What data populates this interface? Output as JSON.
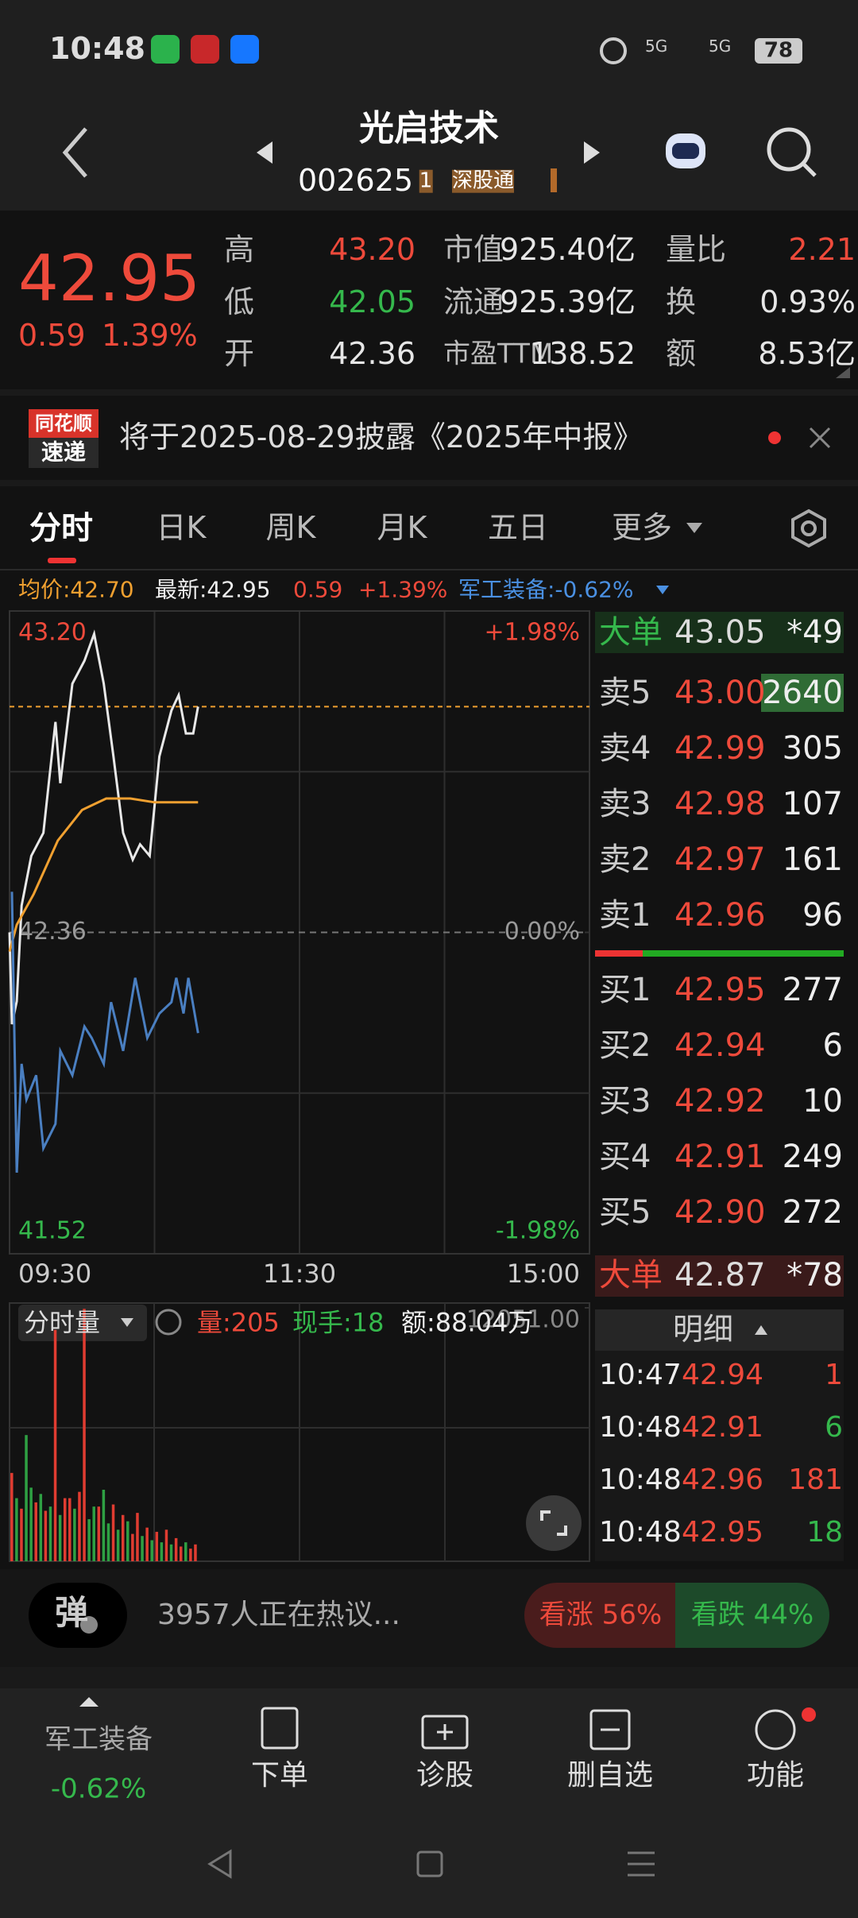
{
  "status_bar": {
    "time": "10:48",
    "signal1": "5G",
    "signal2": "5G",
    "battery": "78"
  },
  "header": {
    "name": "光启技术",
    "code": "002625",
    "badge1": "1",
    "badge2": "深股通"
  },
  "quote": {
    "price": "42.95",
    "change": "0.59",
    "change_pct": "1.39%",
    "rows": [
      [
        "高",
        "43.20",
        "市值",
        "925.40亿",
        "量比",
        "2.21"
      ],
      [
        "低",
        "42.05",
        "流通",
        "925.39亿",
        "换",
        "0.93%"
      ],
      [
        "开",
        "42.36",
        "市盈TTM",
        "138.52",
        "额",
        "8.53亿"
      ]
    ]
  },
  "notice": {
    "brand1": "同花顺",
    "brand2": "速递",
    "text": "将于2025-08-29披露《2025年中报》"
  },
  "tabs": [
    "分时",
    "日K",
    "周K",
    "月K",
    "五日",
    "更多"
  ],
  "info_line": {
    "avg": "均价:42.70",
    "latest": "最新:42.95",
    "change": "0.59",
    "change_pct": "+1.39%",
    "sector": "军工装备:-0.62%"
  },
  "chart_data": [
    {
      "type": "line",
      "xlim": [
        "09:30",
        "15:00"
      ],
      "xticks": [
        "09:30",
        "11:30",
        "15:00"
      ],
      "xgrid": [
        "10:30",
        "11:30",
        "14:00"
      ],
      "ylim": [
        41.52,
        43.2
      ],
      "yticks": [
        {
          "value": 43.2,
          "label": "43.20"
        },
        42.36,
        41.52
      ],
      "ygrid": [
        42.78,
        41.94
      ],
      "y2lim": [
        -1.98,
        1.98
      ],
      "y2ticks": [
        {
          "value": 1.98,
          "label": "+1.98%"
        },
        {
          "value": 0,
          "label": "0.00%"
        },
        {
          "value": -1.98,
          "label": "-1.98%"
        }
      ],
      "price_line": 42.95,
      "price_line_color": "#f0a030",
      "series": [
        {
          "color": "#e8e8e8",
          "x": [
            "09:30",
            "09:31",
            "09:33",
            "09:35",
            "09:39",
            "09:44",
            "09:49",
            "09:51",
            "09:56",
            "10:01",
            "10:05",
            "10:09",
            "10:13",
            "10:17",
            "10:21",
            "10:24",
            "10:28",
            "10:32",
            "10:37",
            "10:40",
            "10:43",
            "10:46",
            "10:48"
          ],
          "values": [
            42.36,
            42.12,
            42.18,
            42.43,
            42.56,
            42.62,
            42.91,
            42.75,
            43.01,
            43.07,
            43.14,
            43.01,
            42.82,
            42.62,
            42.55,
            42.59,
            42.56,
            42.82,
            42.94,
            42.98,
            42.88,
            42.88,
            42.95
          ]
        },
        {
          "color": "#f0a030",
          "x": [
            "09:30",
            "09:33",
            "09:40",
            "09:50",
            "10:00",
            "10:10",
            "10:20",
            "10:30",
            "10:40",
            "10:48"
          ],
          "values": [
            42.31,
            42.38,
            42.46,
            42.6,
            42.68,
            42.71,
            42.71,
            42.7,
            42.7,
            42.7
          ]
        },
        {
          "color": "#4a7fc1",
          "axis": "y2",
          "x": [
            "09:31",
            "09:33",
            "09:35",
            "09:37",
            "09:41",
            "09:44",
            "09:49",
            "09:51",
            "09:56",
            "10:01",
            "10:04",
            "10:09",
            "10:12",
            "10:17",
            "10:22",
            "10:27",
            "10:32",
            "10:37",
            "10:39",
            "10:42",
            "10:44",
            "10:48"
          ],
          "values": [
            0.25,
            -1.48,
            -0.81,
            -1.03,
            -0.88,
            -1.33,
            -1.18,
            -0.73,
            -0.88,
            -0.58,
            -0.65,
            -0.81,
            -0.43,
            -0.73,
            -0.28,
            -0.65,
            -0.5,
            -0.43,
            -0.28,
            -0.5,
            -0.28,
            -0.62
          ]
        }
      ]
    },
    {
      "type": "bar",
      "xlim": [
        "09:30",
        "15:00"
      ],
      "ylim": [
        0,
        12051
      ],
      "yticks": [
        {
          "value": 12051,
          "label": "12051.00"
        }
      ],
      "x": [
        "09:31",
        "09:33",
        "09:35",
        "09:37",
        "09:39",
        "09:41",
        "09:43",
        "09:45",
        "09:47",
        "09:49",
        "09:51",
        "09:53",
        "09:55",
        "09:57",
        "09:59",
        "10:01",
        "10:03",
        "10:05",
        "10:07",
        "10:09",
        "10:11",
        "10:13",
        "10:15",
        "10:17",
        "10:19",
        "10:21",
        "10:23",
        "10:25",
        "10:27",
        "10:29",
        "10:31",
        "10:33",
        "10:35",
        "10:37",
        "10:39",
        "10:41",
        "10:43",
        "10:45",
        "10:47"
      ],
      "values": [
        4200,
        3000,
        2500,
        6000,
        3500,
        2800,
        3200,
        2400,
        2600,
        11000,
        2200,
        3000,
        3000,
        2500,
        3300,
        12000,
        2000,
        2600,
        2600,
        3400,
        1800,
        2700,
        1500,
        2200,
        1900,
        1300,
        2300,
        1200,
        1600,
        1000,
        1400,
        900,
        1500,
        800,
        1100,
        700,
        900,
        600,
        800
      ],
      "colors": [
        "#e03c31",
        "#2ea043",
        "#e03c31",
        "#2ea043",
        "#2ea043",
        "#e03c31",
        "#2ea043",
        "#e03c31",
        "#2ea043",
        "#e03c31",
        "#2ea043",
        "#e03c31",
        "#e03c31",
        "#2ea043",
        "#e03c31",
        "#e03c31",
        "#2ea043",
        "#2ea043",
        "#e03c31",
        "#2ea043",
        "#2ea043",
        "#e03c31",
        "#2ea043",
        "#e03c31",
        "#2ea043",
        "#e03c31",
        "#e03c31",
        "#2ea043",
        "#e03c31",
        "#2ea043",
        "#e03c31",
        "#2ea043",
        "#e03c31",
        "#2ea043",
        "#e03c31",
        "#e03c31",
        "#2ea043",
        "#e03c31",
        "#e03c31"
      ]
    }
  ],
  "volume_header": {
    "selector": "分时量",
    "volume": "量:205",
    "hand": "现手:18",
    "amount": "额:88.04万"
  },
  "order_book": {
    "big_top": [
      "大单",
      "43.05",
      "*49"
    ],
    "asks": [
      [
        "卖5",
        "43.00",
        "2640"
      ],
      [
        "卖4",
        "42.99",
        "305"
      ],
      [
        "卖3",
        "42.98",
        "107"
      ],
      [
        "卖2",
        "42.97",
        "161"
      ],
      [
        "卖1",
        "42.96",
        "96"
      ]
    ],
    "bids": [
      [
        "买1",
        "42.95",
        "277"
      ],
      [
        "买2",
        "42.94",
        "6"
      ],
      [
        "买3",
        "42.92",
        "10"
      ],
      [
        "买4",
        "42.91",
        "249"
      ],
      [
        "买5",
        "42.90",
        "272"
      ]
    ],
    "big_bottom": [
      "大单",
      "42.87",
      "*78"
    ],
    "detail_title": "明细",
    "ticks": [
      [
        "10:47",
        "42.94",
        "1"
      ],
      [
        "10:48",
        "42.91",
        "6"
      ],
      [
        "10:48",
        "42.96",
        "181"
      ],
      [
        "10:48",
        "42.95",
        "18"
      ]
    ]
  },
  "discussion": {
    "button": "弹",
    "text": "3957人正在热议...",
    "bull": "看涨 56%",
    "bear": "看跌 44%"
  },
  "bottom_nav": {
    "sector": "军工装备",
    "sector_change": "-0.62%",
    "items": [
      "下单",
      "诊股",
      "删自选",
      "功能"
    ]
  }
}
